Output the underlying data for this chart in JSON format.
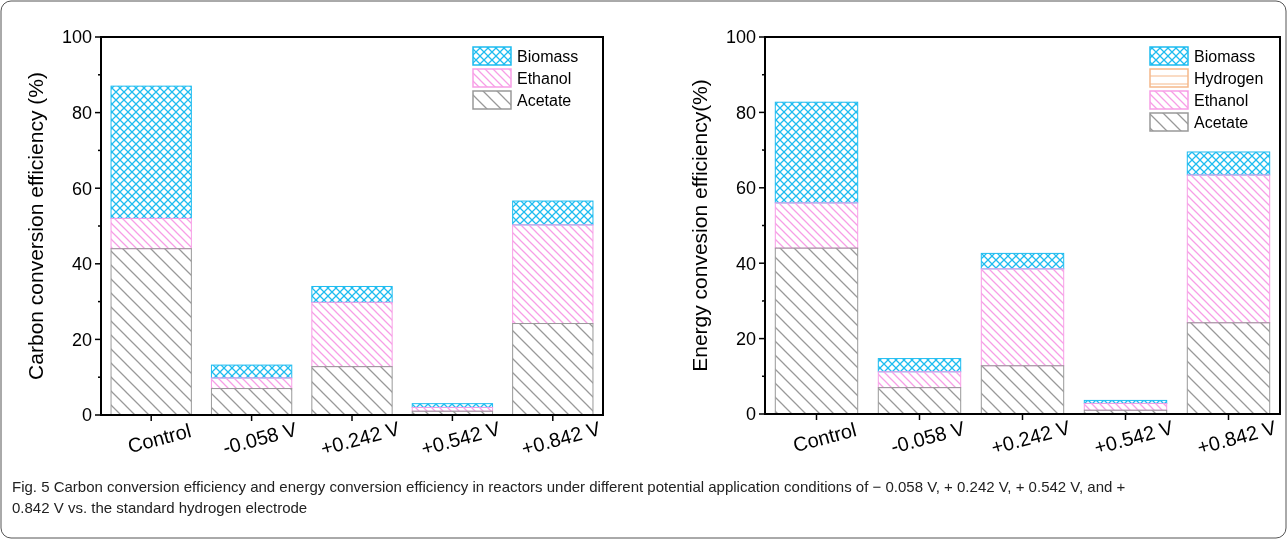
{
  "chart_data": [
    {
      "type": "bar",
      "stacked": true,
      "ylabel": "Carbon conversion efficiency (%)",
      "categories": [
        "Control",
        "-0.058 V",
        "+0.242 V",
        "+0.542 V",
        "+0.842 V"
      ],
      "ylim": [
        0,
        100
      ],
      "yticks": [
        0,
        {
          "value": 10,
          "label": null
        },
        20,
        {
          "value": 30,
          "label": null
        },
        40,
        {
          "value": 50,
          "label": null
        },
        60,
        {
          "value": 70,
          "label": null
        },
        80,
        {
          "value": 90,
          "label": null
        },
        100
      ],
      "legend": "top right",
      "grid": false,
      "series": [
        {
          "name": "Acetate",
          "color": "#999999",
          "values": [
            44,
            7,
            12.8,
            1,
            24.2
          ]
        },
        {
          "name": "Ethanol",
          "color": "#f79ee6",
          "values": [
            8,
            2.8,
            17,
            1,
            26.1
          ]
        },
        {
          "name": "Biomass",
          "color": "#1ebcf0",
          "values": [
            35,
            3.4,
            4.2,
            1,
            6.3
          ]
        }
      ],
      "annotations": [
        "Fig. 5  Carbon conversion efficiency and energy conversion efficiency in reactors under different potential application conditions of − 0.058 V, + 0.242 V, + 0.542 V, and + 0.842 V vs. the standard hydrogen electrode"
      ]
    },
    {
      "type": "bar",
      "stacked": true,
      "ylabel": "Energy convesion efficiency(%)",
      "categories": [
        "Control",
        "-0.058 V",
        "+0.242 V",
        "+0.542 V",
        "+0.842 V"
      ],
      "ylim": [
        0,
        100
      ],
      "yticks": [
        0,
        {
          "value": 10,
          "label": null
        },
        20,
        {
          "value": 30,
          "label": null
        },
        40,
        {
          "value": 50,
          "label": null
        },
        60,
        {
          "value": 70,
          "label": null
        },
        80,
        {
          "value": 90,
          "label": null
        },
        100
      ],
      "legend": "top right",
      "grid": false,
      "series": [
        {
          "name": "Acetate",
          "color": "#999999",
          "values": [
            44,
            7,
            12.8,
            1,
            24.2
          ]
        },
        {
          "name": "Ethanol",
          "color": "#f79ee6",
          "values": [
            12,
            4.2,
            25.7,
            1.8,
            39.2
          ]
        },
        {
          "name": "Hydrogen",
          "color": "#f5b88a",
          "values": [
            0,
            0,
            0,
            0,
            0
          ]
        },
        {
          "name": "Biomass",
          "color": "#1ebcf0",
          "values": [
            26.7,
            3.5,
            4.1,
            0.8,
            6.1
          ]
        }
      ]
    }
  ]
}
